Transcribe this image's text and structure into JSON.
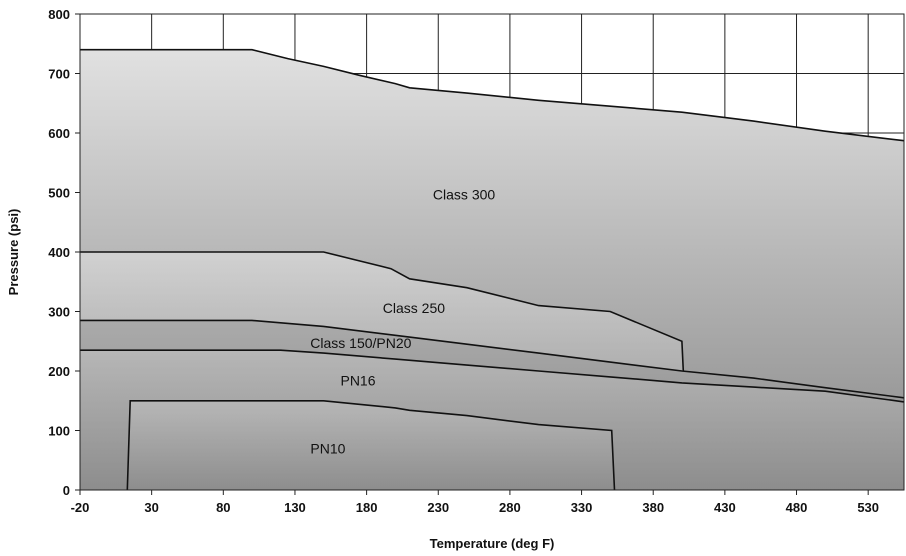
{
  "chart_data": {
    "type": "area",
    "title": "",
    "xlabel": "Temperature (deg F)",
    "ylabel": "Pressure (psi)",
    "xlim": [
      -20,
      555
    ],
    "ylim": [
      0,
      800
    ],
    "x_ticks": [
      -20,
      30,
      80,
      130,
      180,
      230,
      280,
      330,
      380,
      430,
      480,
      530
    ],
    "y_ticks": [
      0,
      100,
      200,
      300,
      400,
      500,
      600,
      700,
      800
    ],
    "grid": "vertical lines every 50 deg F and horizontal lines every 100 psi, above 700 psi only",
    "series": [
      {
        "name": "Class 300",
        "label_at": [
          248,
          497
        ],
        "points": [
          [
            -20,
            740
          ],
          [
            100,
            740
          ],
          [
            125,
            725
          ],
          [
            150,
            712
          ],
          [
            175,
            697
          ],
          [
            200,
            683
          ],
          [
            210,
            676
          ],
          [
            250,
            667
          ],
          [
            300,
            655
          ],
          [
            350,
            645
          ],
          [
            400,
            635
          ],
          [
            450,
            620
          ],
          [
            500,
            603
          ],
          [
            555,
            587
          ]
        ]
      },
      {
        "name": "Class 250",
        "label_at": [
          213,
          306
        ],
        "points": [
          [
            -20,
            400
          ],
          [
            150,
            400
          ],
          [
            175,
            385
          ],
          [
            197,
            372
          ],
          [
            210,
            355
          ],
          [
            250,
            340
          ],
          [
            300,
            310
          ],
          [
            350,
            300
          ],
          [
            400,
            250
          ],
          [
            401,
            200
          ]
        ]
      },
      {
        "name": "Class 150/PN20",
        "label_at": [
          176,
          247
        ],
        "points": [
          [
            -20,
            285
          ],
          [
            100,
            285
          ],
          [
            150,
            275
          ],
          [
            200,
            260
          ],
          [
            250,
            245
          ],
          [
            300,
            230
          ],
          [
            350,
            215
          ],
          [
            400,
            200
          ],
          [
            450,
            188
          ],
          [
            500,
            172
          ],
          [
            555,
            155
          ]
        ]
      },
      {
        "name": "PN16",
        "label_at": [
          174,
          184
        ],
        "points": [
          [
            -20,
            235
          ],
          [
            120,
            235
          ],
          [
            150,
            230
          ],
          [
            200,
            220
          ],
          [
            250,
            210
          ],
          [
            300,
            200
          ],
          [
            350,
            190
          ],
          [
            400,
            180
          ],
          [
            450,
            173
          ],
          [
            500,
            166
          ],
          [
            555,
            148
          ]
        ]
      },
      {
        "name": "PN10",
        "label_at": [
          153,
          70
        ],
        "points": [
          [
            13,
            0
          ],
          [
            15,
            150
          ],
          [
            150,
            150
          ],
          [
            200,
            138
          ],
          [
            210,
            134
          ],
          [
            250,
            125
          ],
          [
            300,
            110
          ],
          [
            351,
            100
          ],
          [
            353,
            0
          ]
        ]
      }
    ]
  }
}
